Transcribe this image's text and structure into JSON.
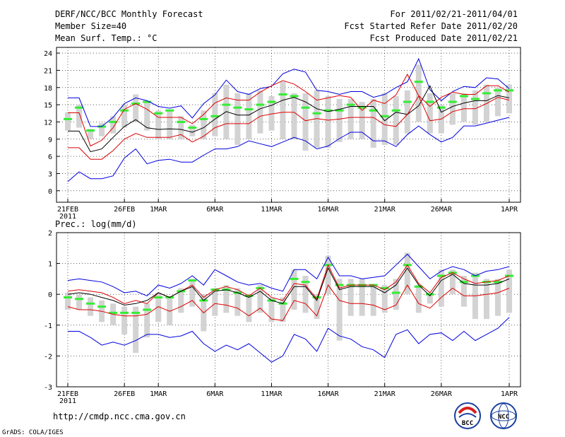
{
  "header": {
    "title": "DERF/NCC/BCC Monthly Forecast",
    "member_size": "Member Size=40",
    "variable": "Mean Surf. Temp.: °C",
    "period": "For 2011/02/21-2011/04/01",
    "refer_date": "Fcst Started Refer Date 2011/02/20",
    "produced_date": "Fcst Produced Date 2011/02/21"
  },
  "footer": {
    "url": "http://cmdp.ncc.cma.gov.cn",
    "grads": "GrADS: COLA/IGES",
    "logo_left": "BCC",
    "logo_right": "NCC"
  },
  "colors": {
    "mean": "#000000",
    "spread": "#dd0000",
    "extreme": "#0000dd",
    "box": "#d3d3d3",
    "median": "#33ee33"
  },
  "chart_data": [
    {
      "type": "line",
      "title": "Mean Surf. Temp.: °C",
      "xlabel": "",
      "ylabel": "",
      "ylim": [
        -2,
        25
      ],
      "yticks": [
        0,
        3,
        6,
        9,
        12,
        15,
        18,
        21,
        24
      ],
      "xticks": [
        {
          "day": 1,
          "label": "21FEB",
          "sub": "2011"
        },
        {
          "day": 6,
          "label": "26FEB"
        },
        {
          "day": 9,
          "label": "1MAR"
        },
        {
          "day": 14,
          "label": "6MAR"
        },
        {
          "day": 19,
          "label": "11MAR"
        },
        {
          "day": 24,
          "label": "16MAR"
        },
        {
          "day": 29,
          "label": "21MAR"
        },
        {
          "day": 34,
          "label": "26MAR"
        },
        {
          "day": 40,
          "label": "1APR"
        }
      ],
      "x": [
        1,
        2,
        3,
        4,
        5,
        6,
        7,
        8,
        9,
        10,
        11,
        12,
        13,
        14,
        15,
        16,
        17,
        18,
        19,
        20,
        21,
        22,
        23,
        24,
        25,
        26,
        27,
        28,
        29,
        30,
        31,
        32,
        33,
        34,
        35,
        36,
        37,
        38,
        39,
        40
      ],
      "series": [
        {
          "name": "max",
          "color": "#0000dd",
          "values": [
            16.2,
            16.2,
            11.2,
            11.2,
            12.8,
            15.2,
            16.2,
            15.7,
            14.7,
            14.4,
            14.8,
            12.7,
            15.2,
            16.7,
            19.3,
            17.3,
            16.8,
            17.8,
            18.2,
            20.4,
            21.2,
            20.7,
            17.5,
            17.3,
            16.8,
            17.3,
            17.3,
            16.3,
            16.8,
            18.0,
            19.0,
            23.0,
            17.6,
            15.7,
            17.3,
            18.2,
            18.0,
            19.7,
            19.5,
            17.8
          ]
        },
        {
          "name": "mean_plus_sd",
          "color": "#dd0000",
          "values": [
            13.6,
            13.6,
            7.8,
            8.8,
            11.0,
            14.2,
            15.2,
            14.2,
            12.8,
            12.8,
            12.8,
            11.7,
            13.3,
            15.3,
            16.2,
            15.8,
            15.8,
            17.2,
            18.3,
            19.2,
            18.6,
            17.3,
            15.8,
            16.2,
            16.6,
            16.3,
            14.0,
            15.8,
            15.2,
            16.7,
            20.3,
            16.6,
            14.7,
            16.3,
            17.2,
            16.8,
            16.8,
            18.3,
            18.3,
            17.2
          ]
        },
        {
          "name": "mean",
          "color": "#000000",
          "values": [
            10.4,
            10.4,
            6.8,
            7.3,
            9.3,
            11.2,
            12.4,
            11.0,
            10.7,
            10.8,
            10.7,
            10.2,
            11.0,
            12.5,
            13.8,
            13.2,
            13.2,
            14.3,
            14.9,
            15.8,
            16.3,
            15.5,
            14.3,
            13.8,
            14.2,
            14.7,
            14.7,
            14.7,
            12.2,
            13.7,
            13.3,
            14.8,
            18.3,
            13.7,
            14.7,
            15.3,
            15.7,
            15.7,
            16.6,
            16.2
          ]
        },
        {
          "name": "mean_minus_sd",
          "color": "#dd0000",
          "values": [
            7.5,
            7.5,
            5.5,
            5.5,
            7.0,
            9.0,
            10.0,
            9.3,
            9.3,
            9.3,
            9.8,
            8.5,
            9.5,
            11.0,
            11.7,
            11.7,
            11.7,
            13.0,
            13.4,
            13.7,
            13.7,
            12.2,
            12.6,
            12.3,
            12.5,
            12.8,
            12.8,
            12.8,
            11.5,
            11.2,
            13.3,
            16.5,
            12.2,
            12.5,
            13.8,
            14.3,
            14.3,
            15.2,
            16.3,
            15.8
          ]
        },
        {
          "name": "min",
          "color": "#0000dd",
          "values": [
            1.6,
            3.3,
            2.1,
            2.1,
            2.6,
            5.7,
            7.3,
            4.7,
            5.3,
            5.5,
            5.0,
            5.0,
            6.2,
            7.3,
            7.3,
            7.7,
            8.7,
            8.2,
            7.7,
            8.5,
            9.3,
            8.7,
            7.3,
            7.8,
            9.1,
            10.2,
            10.2,
            8.7,
            8.7,
            7.7,
            9.8,
            11.3,
            9.8,
            8.5,
            9.3,
            11.3,
            11.3,
            11.8,
            12.3,
            12.8
          ]
        }
      ],
      "boxes": [
        {
          "lo": 10.5,
          "hi": 13.7,
          "median": 12.5
        },
        {
          "lo": 11.0,
          "hi": 15.0,
          "median": 14.5
        },
        {
          "lo": 9.0,
          "hi": 10.8,
          "median": 10.5
        },
        {
          "lo": 9.5,
          "hi": 11.8,
          "median": 11.2
        },
        {
          "lo": 10.0,
          "hi": 13.0,
          "median": 12.0
        },
        {
          "lo": 11.0,
          "hi": 15.0,
          "median": 14.0
        },
        {
          "lo": 12.0,
          "hi": 16.8,
          "median": 15.2
        },
        {
          "lo": 10.5,
          "hi": 15.5,
          "median": 15.5
        },
        {
          "lo": 9.0,
          "hi": 14.0,
          "median": 13.5
        },
        {
          "lo": 9.0,
          "hi": 14.0,
          "median": 14.0
        },
        {
          "lo": 9.0,
          "hi": 13.0,
          "median": 12.0
        },
        {
          "lo": 9.5,
          "hi": 11.5,
          "median": 11.0
        },
        {
          "lo": 9.0,
          "hi": 14.0,
          "median": 12.5
        },
        {
          "lo": 9.5,
          "hi": 17.0,
          "median": 13.0
        },
        {
          "lo": 9.0,
          "hi": 18.5,
          "median": 15.0
        },
        {
          "lo": 8.0,
          "hi": 17.0,
          "median": 14.5
        },
        {
          "lo": 9.0,
          "hi": 17.0,
          "median": 14.2
        },
        {
          "lo": 10.0,
          "hi": 17.5,
          "median": 15.0
        },
        {
          "lo": 10.5,
          "hi": 16.5,
          "median": 15.5
        },
        {
          "lo": 9.0,
          "hi": 19.0,
          "median": 16.8
        },
        {
          "lo": 9.0,
          "hi": 17.0,
          "median": 16.5
        },
        {
          "lo": 7.0,
          "hi": 17.0,
          "median": 14.5
        },
        {
          "lo": 7.5,
          "hi": 17.5,
          "median": 13.5
        },
        {
          "lo": 7.5,
          "hi": 16.5,
          "median": 14.0
        },
        {
          "lo": 8.5,
          "hi": 16.0,
          "median": 14.0
        },
        {
          "lo": 9.0,
          "hi": 16.0,
          "median": 15.0
        },
        {
          "lo": 9.0,
          "hi": 15.5,
          "median": 14.5
        },
        {
          "lo": 7.5,
          "hi": 16.0,
          "median": 14.0
        },
        {
          "lo": 8.0,
          "hi": 17.0,
          "median": 13.0
        },
        {
          "lo": 8.0,
          "hi": 16.5,
          "median": 14.0
        },
        {
          "lo": 10.0,
          "hi": 17.5,
          "median": 15.5
        },
        {
          "lo": 12.0,
          "hi": 22.0,
          "median": 19.0
        },
        {
          "lo": 10.0,
          "hi": 17.0,
          "median": 15.5
        },
        {
          "lo": 10.0,
          "hi": 15.0,
          "median": 14.5
        },
        {
          "lo": 11.5,
          "hi": 17.0,
          "median": 15.5
        },
        {
          "lo": 12.0,
          "hi": 17.0,
          "median": 16.5
        },
        {
          "lo": 11.5,
          "hi": 17.5,
          "median": 16.0
        },
        {
          "lo": 12.0,
          "hi": 18.5,
          "median": 17.0
        },
        {
          "lo": 13.0,
          "hi": 18.0,
          "median": 17.5
        },
        {
          "lo": 13.5,
          "hi": 18.5,
          "median": 17.5
        }
      ]
    },
    {
      "type": "line",
      "title": "Prec.: log(mm/d)",
      "xlabel": "",
      "ylabel": "",
      "ylim": [
        -3,
        2
      ],
      "yticks": [
        -3,
        -2,
        -1,
        0,
        1,
        2
      ],
      "xticks": [
        {
          "day": 1,
          "label": "21FEB",
          "sub": "2011"
        },
        {
          "day": 6,
          "label": "26FEB"
        },
        {
          "day": 9,
          "label": "1MAR"
        },
        {
          "day": 14,
          "label": "6MAR"
        },
        {
          "day": 19,
          "label": "11MAR"
        },
        {
          "day": 24,
          "label": "16MAR"
        },
        {
          "day": 29,
          "label": "21MAR"
        },
        {
          "day": 34,
          "label": "26MAR"
        },
        {
          "day": 40,
          "label": "1APR"
        }
      ],
      "x": [
        1,
        2,
        3,
        4,
        5,
        6,
        7,
        8,
        9,
        10,
        11,
        12,
        13,
        14,
        15,
        16,
        17,
        18,
        19,
        20,
        21,
        22,
        23,
        24,
        25,
        26,
        27,
        28,
        29,
        30,
        31,
        32,
        33,
        34,
        35,
        36,
        37,
        38,
        39,
        40
      ],
      "series": [
        {
          "name": "max",
          "color": "#0000dd",
          "values": [
            0.45,
            0.5,
            0.45,
            0.4,
            0.25,
            0.05,
            0.1,
            -0.05,
            0.3,
            0.2,
            0.35,
            0.6,
            0.3,
            0.8,
            0.6,
            0.4,
            0.3,
            0.35,
            0.2,
            0.1,
            0.8,
            0.8,
            0.5,
            1.2,
            0.6,
            0.6,
            0.5,
            0.55,
            0.6,
            0.95,
            1.3,
            0.9,
            0.5,
            0.75,
            0.9,
            0.8,
            0.6,
            0.75,
            0.8,
            0.9
          ]
        },
        {
          "name": "mean_plus_sd",
          "color": "#dd0000",
          "values": [
            0.1,
            0.15,
            0.1,
            0.05,
            -0.1,
            -0.3,
            -0.2,
            -0.3,
            0.05,
            -0.1,
            0.1,
            0.3,
            -0.1,
            0.15,
            0.25,
            0.15,
            -0.05,
            0.2,
            -0.1,
            -0.2,
            0.35,
            0.3,
            -0.15,
            0.95,
            0.2,
            0.3,
            0.3,
            0.3,
            0.15,
            0.4,
            0.95,
            0.35,
            0.05,
            0.55,
            0.7,
            0.5,
            0.35,
            0.4,
            0.45,
            0.6
          ]
        },
        {
          "name": "mean",
          "color": "#000000",
          "values": [
            0.0,
            0.05,
            0.0,
            -0.1,
            -0.2,
            -0.35,
            -0.3,
            -0.2,
            0.05,
            -0.1,
            0.1,
            0.25,
            -0.2,
            0.1,
            0.15,
            0.05,
            -0.1,
            0.1,
            -0.2,
            -0.3,
            0.25,
            0.25,
            -0.2,
            0.85,
            0.15,
            0.25,
            0.25,
            0.25,
            0.05,
            0.3,
            0.85,
            0.3,
            -0.05,
            0.45,
            0.65,
            0.35,
            0.3,
            0.3,
            0.35,
            0.5
          ]
        },
        {
          "name": "mean_minus_sd",
          "color": "#dd0000",
          "values": [
            -0.4,
            -0.5,
            -0.5,
            -0.55,
            -0.65,
            -0.7,
            -0.7,
            -0.65,
            -0.4,
            -0.55,
            -0.4,
            -0.2,
            -0.6,
            -0.3,
            -0.35,
            -0.45,
            -0.7,
            -0.45,
            -0.8,
            -0.85,
            -0.2,
            -0.3,
            -0.7,
            0.3,
            -0.2,
            -0.3,
            -0.3,
            -0.35,
            -0.5,
            -0.35,
            0.3,
            -0.3,
            -0.45,
            -0.1,
            0.2,
            -0.05,
            -0.05,
            0.0,
            0.05,
            0.2
          ]
        },
        {
          "name": "min",
          "color": "#0000dd",
          "values": [
            -1.2,
            -1.2,
            -1.4,
            -1.65,
            -1.55,
            -1.65,
            -1.5,
            -1.3,
            -1.3,
            -1.4,
            -1.35,
            -1.2,
            -1.6,
            -1.85,
            -1.65,
            -1.8,
            -1.6,
            -1.9,
            -2.2,
            -2.0,
            -1.3,
            -1.45,
            -1.85,
            -1.1,
            -1.35,
            -1.45,
            -1.7,
            -1.8,
            -2.05,
            -1.3,
            -1.15,
            -1.6,
            -1.3,
            -1.25,
            -1.5,
            -1.2,
            -1.5,
            -1.3,
            -1.1,
            -0.75
          ]
        }
      ],
      "boxes": [
        {
          "lo": -0.5,
          "hi": 0.05,
          "median": -0.1
        },
        {
          "lo": -0.5,
          "hi": 0.0,
          "median": -0.15
        },
        {
          "lo": -0.7,
          "hi": -0.1,
          "median": -0.3
        },
        {
          "lo": -0.9,
          "hi": -0.2,
          "median": -0.4
        },
        {
          "lo": -1.0,
          "hi": -0.3,
          "median": -0.6
        },
        {
          "lo": -1.3,
          "hi": -0.4,
          "median": -0.6
        },
        {
          "lo": -1.9,
          "hi": -0.4,
          "median": -0.6
        },
        {
          "lo": -1.4,
          "hi": -0.3,
          "median": -0.5
        },
        {
          "lo": -0.9,
          "hi": 0.05,
          "median": -0.1
        },
        {
          "lo": -1.0,
          "hi": -0.1,
          "median": -0.1
        },
        {
          "lo": -0.6,
          "hi": 0.2,
          "median": 0.1
        },
        {
          "lo": -0.4,
          "hi": 0.5,
          "median": 0.45
        },
        {
          "lo": -1.2,
          "hi": 0.0,
          "median": -0.2
        },
        {
          "lo": -0.7,
          "hi": 0.2,
          "median": 0.15
        },
        {
          "lo": -0.6,
          "hi": 0.3,
          "median": 0.15
        },
        {
          "lo": -0.7,
          "hi": 0.2,
          "median": 0.05
        },
        {
          "lo": -0.9,
          "hi": 0.0,
          "median": -0.05
        },
        {
          "lo": -0.6,
          "hi": 0.3,
          "median": 0.2
        },
        {
          "lo": -0.9,
          "hi": -0.1,
          "median": -0.2
        },
        {
          "lo": -0.9,
          "hi": -0.1,
          "median": -0.3
        },
        {
          "lo": -0.5,
          "hi": 0.8,
          "median": 0.5
        },
        {
          "lo": -0.6,
          "hi": 0.6,
          "median": 0.4
        },
        {
          "lo": -0.8,
          "hi": 0.0,
          "median": -0.1
        },
        {
          "lo": 0.0,
          "hi": 1.25,
          "median": 0.95
        },
        {
          "lo": -1.5,
          "hi": 0.5,
          "median": 0.3
        },
        {
          "lo": -0.7,
          "hi": 0.5,
          "median": 0.3
        },
        {
          "lo": -0.7,
          "hi": 0.5,
          "median": 0.3
        },
        {
          "lo": -0.7,
          "hi": 0.3,
          "median": 0.3
        },
        {
          "lo": -0.6,
          "hi": 0.3,
          "median": 0.2
        },
        {
          "lo": -0.5,
          "hi": 0.5,
          "median": 0.05
        },
        {
          "lo": 0.0,
          "hi": 1.35,
          "median": 0.95
        },
        {
          "lo": -0.6,
          "hi": 0.3,
          "median": 0.25
        },
        {
          "lo": -0.3,
          "hi": 0.0,
          "median": 0.0
        },
        {
          "lo": -0.4,
          "hi": 0.8,
          "median": 0.6
        },
        {
          "lo": 0.0,
          "hi": 0.8,
          "median": 0.7
        },
        {
          "lo": -0.4,
          "hi": 0.6,
          "median": 0.4
        },
        {
          "lo": -0.8,
          "hi": 0.7,
          "median": 0.6
        },
        {
          "lo": -0.8,
          "hi": 0.5,
          "median": 0.4
        },
        {
          "lo": -0.7,
          "hi": 0.5,
          "median": 0.4
        },
        {
          "lo": -0.6,
          "hi": 0.8,
          "median": 0.6
        }
      ]
    }
  ]
}
